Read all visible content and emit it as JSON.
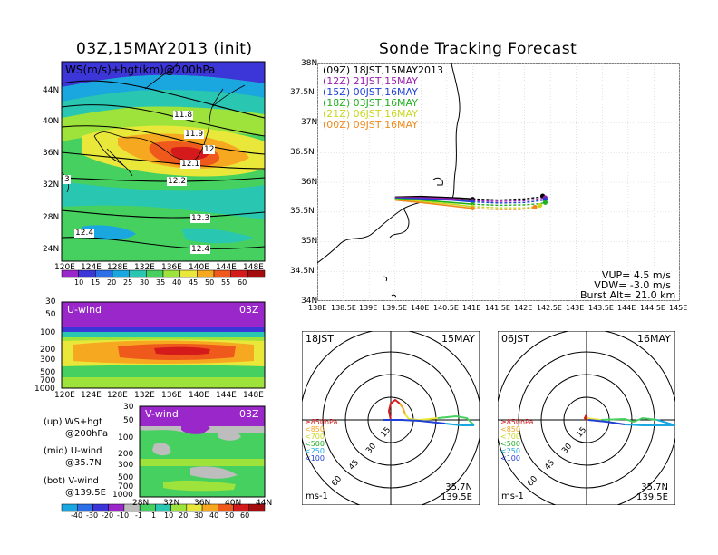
{
  "left": {
    "title": "03Z,15MAY2013 (init)",
    "map": {
      "label": "WS(m/s)+hgt(km)@200hPa",
      "yticks": [
        "44N",
        "40N",
        "36N",
        "32N",
        "28N",
        "24N"
      ],
      "xticks": [
        "120E",
        "124E",
        "128E",
        "132E",
        "136E",
        "140E",
        "144E",
        "148E"
      ],
      "contour_labels": [
        "11.8",
        "11.9",
        "12",
        "12.1",
        "12.2",
        "12.3",
        "12.4",
        "12.4",
        "3"
      ],
      "colorbar": [
        "10",
        "15",
        "20",
        "25",
        "30",
        "35",
        "40",
        "45",
        "50",
        "55",
        "60"
      ],
      "colorbar_colors": [
        "#9a27c9",
        "#3c35d8",
        "#2d6fe6",
        "#1aa7e0",
        "#29c7b2",
        "#46d060",
        "#9ee23c",
        "#e9e83a",
        "#f6a821",
        "#ef5a1c",
        "#d41a1a",
        "#a40d0d"
      ]
    },
    "u_wind": {
      "label": "U-wind",
      "time": "03Z",
      "yticks": [
        "30",
        "50",
        "100",
        "200",
        "300",
        "500",
        "700",
        "1000"
      ],
      "xticks": [
        "120E",
        "124E",
        "128E",
        "132E",
        "136E",
        "140E",
        "144E",
        "148E"
      ]
    },
    "v_wind": {
      "label": "V-wind",
      "time": "03Z",
      "yticks": [
        "30",
        "50",
        "100",
        "200",
        "300",
        "500",
        "700",
        "1000"
      ],
      "xticks": [
        "28N",
        "32N",
        "36N",
        "40N",
        "44N"
      ]
    },
    "legend": [
      {
        "line1": "(up) WS+hgt",
        "line2": "@200hPa"
      },
      {
        "line1": "(mid) U-wind",
        "line2": "@35.7N"
      },
      {
        "line1": "(bot) V-wind",
        "line2": "@139.5E"
      }
    ],
    "colorbar2": [
      "-40",
      "-30",
      "-20",
      "-10",
      "-1",
      "1",
      "10",
      "20",
      "30",
      "40",
      "50",
      "60"
    ],
    "colorbar2_colors": [
      "#1aa7e0",
      "#2d6fe6",
      "#3c35d8",
      "#9a27c9",
      "#bdbdbd",
      "#46d060",
      "#29c7b2",
      "#9ee23c",
      "#e9e83a",
      "#f6a821",
      "#ef5a1c",
      "#d41a1a",
      "#a40d0d"
    ]
  },
  "right": {
    "title": "Sonde Tracking Forecast",
    "yticks": [
      "38N",
      "37.5N",
      "37N",
      "36.5N",
      "36N",
      "35.5N",
      "35N",
      "34.5N",
      "34N"
    ],
    "xticks": [
      "138E",
      "138.5E",
      "139E",
      "139.5E",
      "140E",
      "140.5E",
      "141E",
      "141.5E",
      "142E",
      "142.5E",
      "143E",
      "143.5E",
      "144E",
      "144.5E",
      "145E"
    ],
    "launches": [
      {
        "utc": "(09Z)",
        "jst": "18JST,15MAY2013",
        "color": "#000000"
      },
      {
        "utc": "(12Z)",
        "jst": "21JST,15MAY",
        "color": "#9a1fb0"
      },
      {
        "utc": "(15Z)",
        "jst": "00JST,16MAY",
        "color": "#1f3fd6"
      },
      {
        "utc": "(18Z)",
        "jst": "03JST,16MAY",
        "color": "#20b020"
      },
      {
        "utc": "(21Z)",
        "jst": "06JST,16MAY",
        "color": "#c8d820"
      },
      {
        "utc": "(00Z)",
        "jst": "09JST,16MAY",
        "color": "#f08a1a"
      }
    ],
    "params": [
      "VUP= 4.5 m/s",
      "VDW= -3.0 m/s",
      "Burst Alt= 21.0 km"
    ]
  },
  "polar_left": {
    "time": "18JST",
    "date": "15MAY",
    "rings": [
      "15",
      "30",
      "45",
      "60"
    ],
    "levels": [
      {
        "text": "≥850hPa",
        "color": "#d41a1a"
      },
      {
        "text": "<850",
        "color": "#f6a821"
      },
      {
        "text": "<700",
        "color": "#e9e83a"
      },
      {
        "text": "<500",
        "color": "#46d060"
      },
      {
        "text": "<250",
        "color": "#1aa7e0"
      },
      {
        "text": "<100",
        "color": "#1f3fd6"
      }
    ],
    "unit": "ms-1",
    "lat": "35.7N",
    "lon": "139.5E"
  },
  "polar_right": {
    "time": "06JST",
    "date": "16MAY",
    "rings": [
      "15",
      "30",
      "45",
      "60"
    ],
    "levels": [
      {
        "text": "≥850hPa",
        "color": "#d41a1a"
      },
      {
        "text": "<850",
        "color": "#f6a821"
      },
      {
        "text": "<700",
        "color": "#e9e83a"
      },
      {
        "text": "<500",
        "color": "#46d060"
      },
      {
        "text": "<250",
        "color": "#1aa7e0"
      },
      {
        "text": "<100",
        "color": "#1f3fd6"
      }
    ],
    "unit": "ms-1",
    "lat": "35.7N",
    "lon": "139.5E"
  },
  "chart_data": [
    {
      "type": "line",
      "title": "Sonde Tracking Forecast",
      "xlim": [
        138,
        145
      ],
      "ylim": [
        34,
        38
      ],
      "series": [
        {
          "name": "(09Z) 18JST,15MAY2013",
          "x": [
            139.5,
            140.0,
            140.6,
            141.0,
            141.5,
            142.0,
            142.3,
            142.35
          ],
          "y": [
            35.75,
            35.76,
            35.74,
            35.72,
            35.7,
            35.72,
            35.75,
            35.77
          ]
        },
        {
          "name": "(12Z) 21JST,15MAY",
          "x": [
            139.5,
            140.0,
            140.6,
            141.0,
            141.5,
            142.0,
            142.3,
            142.4
          ],
          "y": [
            35.74,
            35.74,
            35.72,
            35.69,
            35.68,
            35.69,
            35.72,
            35.74
          ]
        },
        {
          "name": "(15Z) 00JST,16MAY",
          "x": [
            139.5,
            140.0,
            140.6,
            141.0,
            141.5,
            142.0,
            142.3,
            142.4
          ],
          "y": [
            35.73,
            35.72,
            35.7,
            35.67,
            35.65,
            35.66,
            35.69,
            35.71
          ]
        },
        {
          "name": "(18Z) 03JST,16MAY",
          "x": [
            139.5,
            140.0,
            140.6,
            141.0,
            141.5,
            142.0,
            142.3,
            142.4
          ],
          "y": [
            35.72,
            35.7,
            35.66,
            35.63,
            35.61,
            35.62,
            35.64,
            35.66
          ]
        },
        {
          "name": "(21Z) 06JST,16MAY",
          "x": [
            139.5,
            140.0,
            140.6,
            141.0,
            141.5,
            142.0,
            142.2,
            142.3
          ],
          "y": [
            35.71,
            35.68,
            35.63,
            35.59,
            35.57,
            35.57,
            35.59,
            35.61
          ]
        },
        {
          "name": "(00Z) 09JST,16MAY",
          "x": [
            139.5,
            140.0,
            140.6,
            141.0,
            141.5,
            141.9,
            142.1,
            142.2
          ],
          "y": [
            35.7,
            35.66,
            35.6,
            35.56,
            35.54,
            35.54,
            35.56,
            35.58
          ]
        }
      ]
    }
  ]
}
